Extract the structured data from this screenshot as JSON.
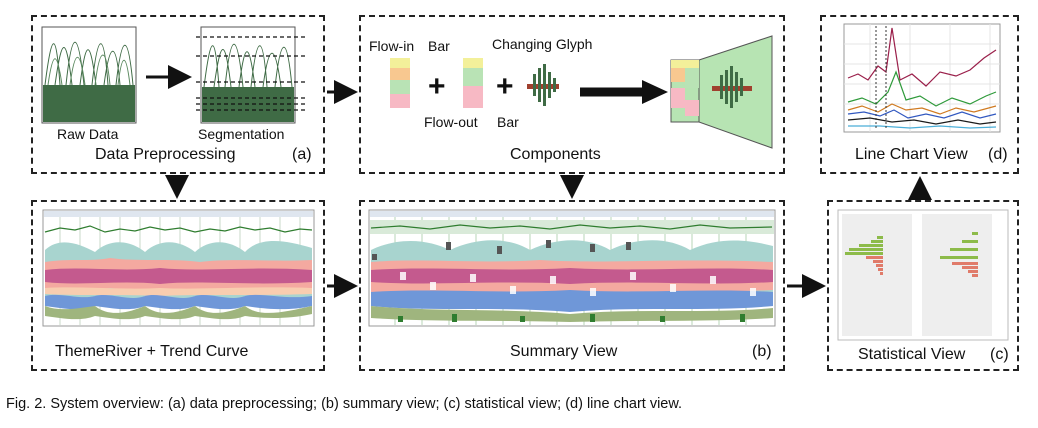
{
  "preprocessing": {
    "raw_data_label": "Raw Data",
    "segmentation_label": "Segmentation",
    "title": "Data Preprocessing",
    "tag": "(a)"
  },
  "components": {
    "flow_in_label": "Flow-in",
    "bar_label_top": "Bar",
    "changing_glyph_label": "Changing Glyph",
    "flow_out_label": "Flow-out",
    "bar_label_bottom": "Bar",
    "plus": "+",
    "title": "Components"
  },
  "line_chart": {
    "title": "Line Chart View",
    "tag": "(d)"
  },
  "themeriver": {
    "title": "ThemeRiver + Trend Curve"
  },
  "summary": {
    "title": "Summary View",
    "tag": "(b)"
  },
  "statistical": {
    "title": "Statistical View",
    "tag": "(c)"
  },
  "caption": "Fig. 2. System overview: (a) data preprocessing; (b) summary view; (c) statistical view; (d) line chart view.",
  "colors": {
    "raw_green": "#3f6b45",
    "river_teal": "#a8d4cf",
    "river_salmon": "#f4a9a0",
    "river_magenta": "#c45a8e",
    "river_peach": "#f8cdb0",
    "river_blue": "#6f97d8",
    "river_olive": "#9fb57e",
    "bar_green": "#8dbb4a",
    "bar_red": "#e07b6a",
    "glyph_fill": "#b7e4b3"
  }
}
